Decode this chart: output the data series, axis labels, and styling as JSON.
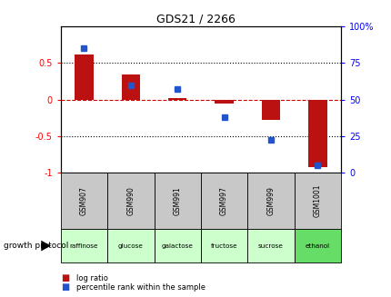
{
  "title": "GDS21 / 2266",
  "categories": [
    "GSM907",
    "GSM990",
    "GSM991",
    "GSM997",
    "GSM999",
    "GSM1001"
  ],
  "protocols": [
    "raffinose",
    "glucose",
    "galactose",
    "fructose",
    "sucrose",
    "ethanol"
  ],
  "log_ratio": [
    0.62,
    0.35,
    0.02,
    -0.05,
    -0.28,
    -0.93
  ],
  "percentile_rank": [
    85,
    60,
    57,
    38,
    22,
    5
  ],
  "bar_color": "#bb1111",
  "dot_color": "#2255cc",
  "left_ylim": [
    -1,
    1
  ],
  "right_ylim": [
    0,
    100
  ],
  "left_yticks": [
    -1,
    -0.5,
    0,
    0.5
  ],
  "right_yticks": [
    0,
    25,
    50,
    75,
    100
  ],
  "left_yticklabels": [
    "-1",
    "-0.5",
    "0",
    "0.5"
  ],
  "right_yticklabels": [
    "0",
    "25",
    "50",
    "75",
    "100%"
  ],
  "gsm_bg_color": "#c8c8c8",
  "protocol_colors": [
    "#ccffcc",
    "#ccffcc",
    "#ccffcc",
    "#ccffcc",
    "#ccffcc",
    "#66dd66"
  ],
  "legend_log_ratio": "log ratio",
  "legend_percentile": "percentile rank within the sample",
  "growth_protocol_label": "growth protocol"
}
